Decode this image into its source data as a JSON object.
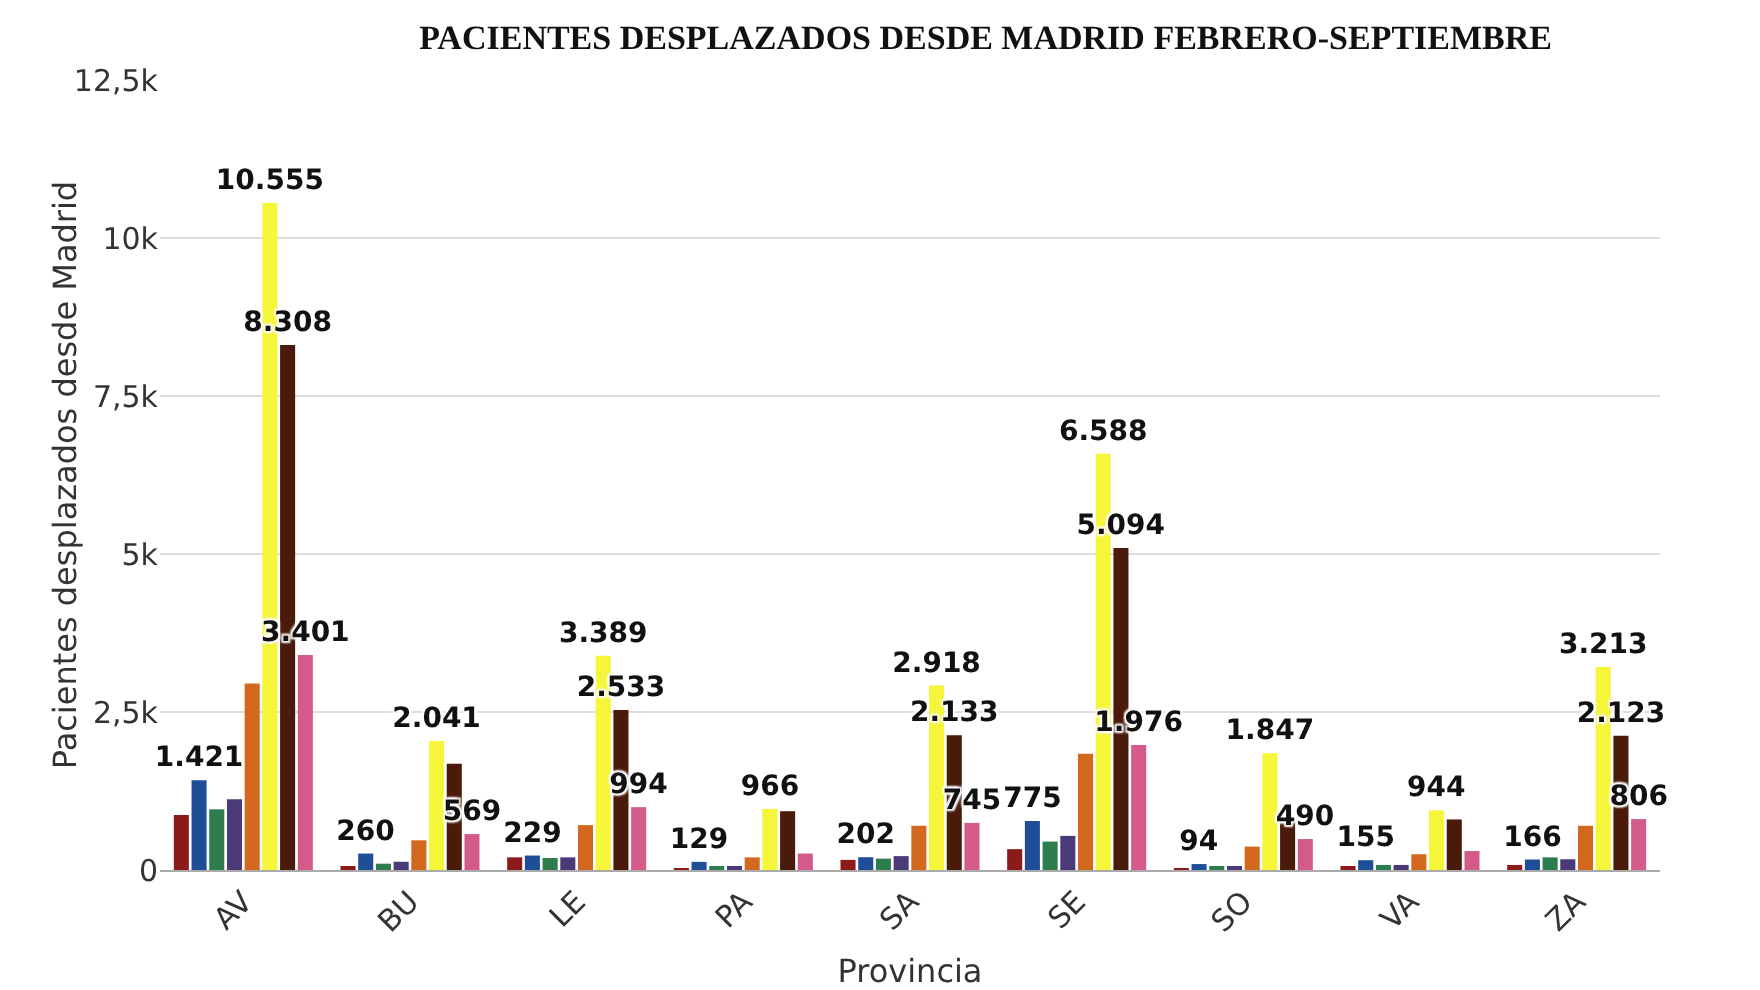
{
  "chart_data": {
    "type": "bar",
    "title": "PACIENTES DESPLAZADOS DESDE MADRID FEBRERO-SEPTIEMBRE",
    "xlabel": "Provincia",
    "ylabel": "Pacientes desplazados desde Madrid",
    "categories": [
      "AV",
      "BU",
      "LE",
      "PA",
      "SA",
      "SE",
      "SO",
      "VA",
      "ZA"
    ],
    "series": [
      {
        "color": "#8b1a1a",
        "values": [
          870,
          60,
          200,
          20,
          160,
          330,
          30,
          60,
          80
        ]
      },
      {
        "color": "#1f4e99",
        "values": [
          1421,
          260,
          229,
          129,
          202,
          775,
          94,
          155,
          166
        ],
        "value_labels": [
          "1.421",
          "260",
          "229",
          "129",
          "202",
          "775",
          "94",
          "155",
          "166"
        ]
      },
      {
        "color": "#2e7d4f",
        "values": [
          960,
          100,
          190,
          40,
          180,
          450,
          50,
          80,
          200
        ]
      },
      {
        "color": "#4b3a78",
        "values": [
          1120,
          130,
          200,
          60,
          220,
          540,
          40,
          80,
          170
        ]
      },
      {
        "color": "#d2691e",
        "values": [
          2950,
          470,
          710,
          200,
          700,
          1840,
          370,
          250,
          700
        ]
      },
      {
        "color": "#f5f53a",
        "values": [
          10555,
          2041,
          3389,
          966,
          2918,
          6588,
          1847,
          944,
          3213
        ],
        "value_labels": [
          "10.555",
          "2.041",
          "3.389",
          "966",
          "2.918",
          "6.588",
          "1.847",
          "944",
          "3.213"
        ]
      },
      {
        "color": "#4a1a0a",
        "values": [
          8308,
          1680,
          2533,
          930,
          2133,
          5094,
          820,
          800,
          2123
        ],
        "value_labels": [
          "8.308",
          null,
          "2.533",
          null,
          "2.133",
          "5.094",
          null,
          null,
          "2.123"
        ]
      },
      {
        "color": "#d45a8a",
        "values": [
          3401,
          569,
          994,
          260,
          745,
          1976,
          490,
          300,
          806
        ],
        "value_labels": [
          "3.401",
          "569",
          "994",
          null,
          "745",
          "1.976",
          "490",
          null,
          "806"
        ]
      }
    ],
    "ylim": [
      0,
      12500
    ],
    "yticks": [
      0,
      {
        "value": 2500,
        "label": "2,5k"
      },
      {
        "value": 5000,
        "label": "5k"
      },
      {
        "value": 7500,
        "label": "7,5k"
      },
      {
        "value": 10000,
        "label": "10k"
      },
      {
        "value": 12500,
        "label": "12,5k"
      }
    ],
    "grid": "y"
  }
}
